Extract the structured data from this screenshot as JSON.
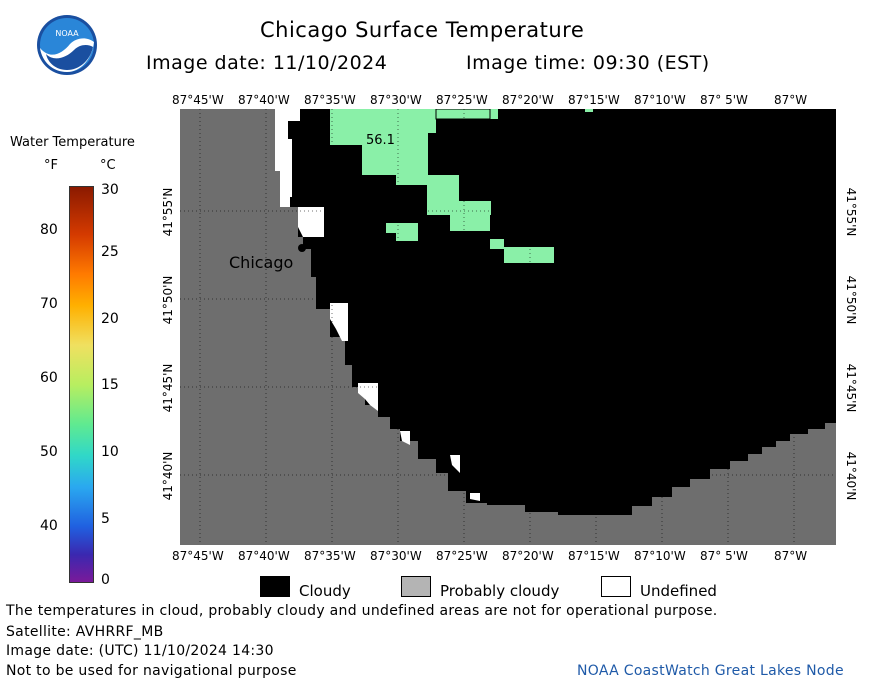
{
  "header": {
    "title": "Chicago Surface Temperature",
    "image_date": "Image date: 11/10/2024",
    "image_time": "Image time: 09:30 (EST)"
  },
  "logo": {
    "text": "NOAA"
  },
  "colorbar": {
    "title": "Water Temperature",
    "unit_f": "°F",
    "unit_c": "°C",
    "f_labels": [
      "80",
      "70",
      "60",
      "50",
      "40"
    ],
    "c_labels": [
      "30",
      "25",
      "20",
      "15",
      "10",
      "5",
      "0"
    ]
  },
  "map": {
    "lon_labels": [
      "87°45'W",
      "87°40'W",
      "87°35'W",
      "87°30'W",
      "87°25'W",
      "87°20'W",
      "87°15'W",
      "87°10'W",
      "87° 5'W",
      "87°W"
    ],
    "lat_labels": [
      "41°55'N",
      "41°50'N",
      "41°45'N",
      "41°40'N"
    ],
    "city_label": "Chicago",
    "temp_label": "56.1",
    "colors": {
      "land": "#6e6e6e",
      "cloudy": "#000000",
      "probably_cloudy": "#b4b4b4",
      "undefined": "#ffffff",
      "water_temp": "#8af0a8"
    }
  },
  "legend": {
    "cloudy": "Cloudy",
    "probably_cloudy": "Probably cloudy",
    "undefined": "Undefined"
  },
  "footer": {
    "note": "The temperatures in cloud, probably cloudy and undefined areas are not for operational purpose.",
    "satellite": "Satellite: AVHRRF_MB",
    "utc_date": "Image date: (UTC) 11/10/2024  14:30",
    "nav_warning": "Not to be used for navigational purpose",
    "credit": "NOAA CoastWatch Great Lakes Node"
  }
}
